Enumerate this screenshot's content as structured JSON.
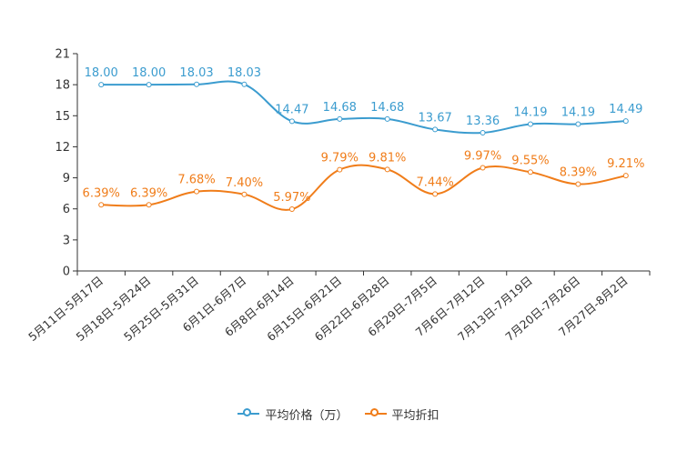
{
  "chart_data": {
    "type": "line",
    "title": "",
    "xlabel": "",
    "ylabel": "",
    "ylim": [
      0,
      21
    ],
    "yticks": [
      0,
      3,
      6,
      9,
      12,
      15,
      18,
      21
    ],
    "categories": [
      "5月11日-5月17日",
      "5月18日-5月24日",
      "5月25日-5月31日",
      "6月1日-6月7日",
      "6月8日-6月14日",
      "6月15日-6月21日",
      "6月22日-6月28日",
      "6月29日-7月5日",
      "7月6日-7月12日",
      "7月13日-7月19日",
      "7月20日-7月26日",
      "7月27日-8月2日"
    ],
    "series": [
      {
        "name": "平均价格（万）",
        "color": "#3b9ccf",
        "values": [
          18.0,
          18.0,
          18.03,
          18.03,
          14.47,
          14.68,
          14.68,
          13.67,
          13.36,
          14.19,
          14.19,
          14.49
        ],
        "labels": [
          "18.00",
          "18.00",
          "18.03",
          "18.03",
          "14.47",
          "14.68",
          "14.68",
          "13.67",
          "13.36",
          "14.19",
          "14.19",
          "14.49"
        ]
      },
      {
        "name": "平均折扣",
        "color": "#f07d1a",
        "values": [
          6.39,
          6.39,
          7.68,
          7.4,
          5.97,
          9.79,
          9.81,
          7.44,
          9.97,
          9.55,
          8.39,
          9.21
        ],
        "labels": [
          "6.39%",
          "6.39%",
          "7.68%",
          "7.40%",
          "5.97%",
          "9.79%",
          "9.81%",
          "7.44%",
          "9.97%",
          "9.55%",
          "8.39%",
          "9.21%"
        ]
      }
    ],
    "legend_position": "bottom-center",
    "grid": false
  }
}
